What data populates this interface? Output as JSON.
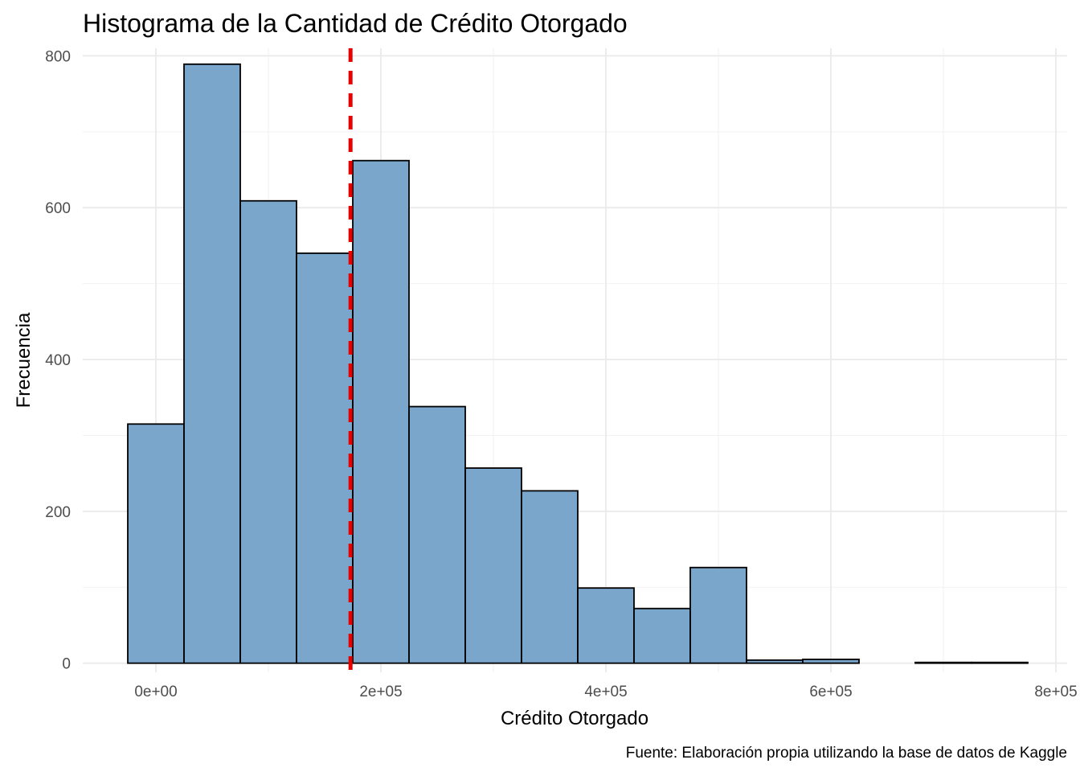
{
  "chart_data": {
    "type": "bar",
    "title": "Histograma de la Cantidad de Crédito Otorgado",
    "xlabel": "Crédito Otorgado",
    "ylabel": "Frecuencia",
    "caption": "Fuente: Elaboración propia utilizando la base de datos de Kaggle",
    "bin_width": 50000,
    "bin_starts": [
      -25000,
      25000,
      75000,
      125000,
      175000,
      225000,
      275000,
      325000,
      375000,
      425000,
      475000,
      525000,
      575000,
      625000,
      675000,
      725000
    ],
    "values": [
      315,
      789,
      609,
      540,
      662,
      338,
      257,
      227,
      99,
      72,
      126,
      4,
      5,
      0,
      1,
      1
    ],
    "xlim": [
      -65000,
      810000
    ],
    "ylim": [
      -12,
      810
    ],
    "x_ticks": [
      0,
      200000,
      400000,
      600000,
      800000
    ],
    "x_tick_labels": [
      "0e+00",
      "2e+05",
      "4e+05",
      "6e+05",
      "8e+05"
    ],
    "y_ticks": [
      0,
      200,
      400,
      600,
      800
    ],
    "y_tick_labels": [
      "0",
      "200",
      "400",
      "600",
      "800"
    ],
    "reference_line": {
      "x": 173000,
      "style": "dashed",
      "color": "#e60000"
    },
    "bar_fill": "#7ba6cb",
    "bar_stroke": "#000000",
    "grid": true,
    "legend": "none"
  }
}
